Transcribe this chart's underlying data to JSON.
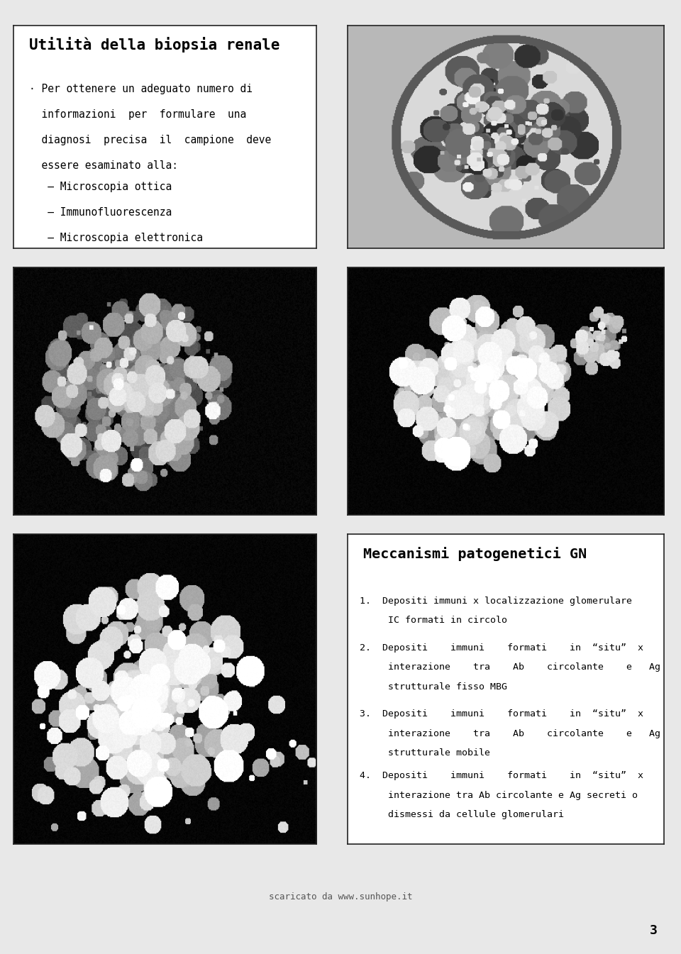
{
  "bg_color": "#e8e8e8",
  "panel_bg": "#ffffff",
  "border_color": "#222222",
  "slide_title": "Utilità della biopsia renale",
  "slide_title_fontsize": 15,
  "bullet_lines": [
    "· Per ottenere un adeguato numero di",
    "  informazioni  per  formulare  una",
    "  diagnosi  precisa  il  campione  deve",
    "  essere esaminato alla:",
    "   – Microscopia ottica",
    "   – Immunofluorescenza",
    "   – Microscopia elettronica"
  ],
  "bullet_fontsize": 10.5,
  "meccanismi_title": "Meccanismi patogenetici GN",
  "meccanismi_title_fontsize": 14.5,
  "item1_lines": [
    "1.  Depositi immuni x localizzazione glomerulare",
    "     IC formati in circolo"
  ],
  "item2_lines": [
    "2.  Depositi    immuni    formati    in  “situ”  x",
    "     interazione    tra    Ab    circolante    e   Ag",
    "     strutturale fisso MBG"
  ],
  "item3_lines": [
    "3.  Depositi    immuni    formati    in  “situ”  x",
    "     interazione    tra    Ab    circolante    e   Ag",
    "     strutturale mobile"
  ],
  "item4_lines": [
    "4.  Depositi    immuni    formati    in  “situ”  x",
    "     interazione tra Ab circolante e Ag secreti o",
    "     dismessi da cellule glomerulari"
  ],
  "item_fontsize": 9.5,
  "footer_text": "scaricato da www.sunhope.it",
  "footer_fontsize": 9,
  "page_number": "3",
  "page_number_fontsize": 13
}
